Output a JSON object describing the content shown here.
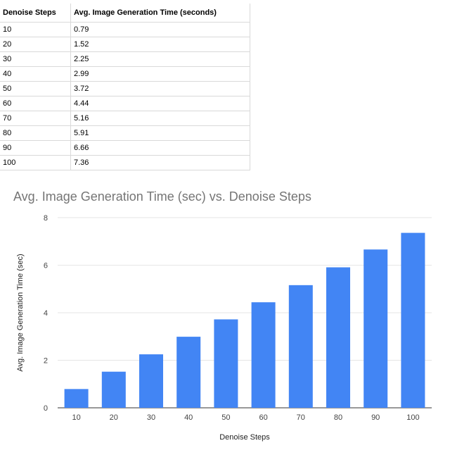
{
  "table": {
    "headers": [
      "Denoise Steps",
      "Avg. Image Generation Time (seconds)"
    ],
    "rows": [
      [
        "10",
        "0.79"
      ],
      [
        "20",
        "1.52"
      ],
      [
        "30",
        "2.25"
      ],
      [
        "40",
        "2.99"
      ],
      [
        "50",
        "3.72"
      ],
      [
        "60",
        "4.44"
      ],
      [
        "70",
        "5.16"
      ],
      [
        "80",
        "5.91"
      ],
      [
        "90",
        "6.66"
      ],
      [
        "100",
        "7.36"
      ]
    ]
  },
  "chart_data": {
    "type": "bar",
    "title": "Avg. Image Generation Time (sec) vs. Denoise Steps",
    "xlabel": "Denoise Steps",
    "ylabel": "Avg. Image Generation Time (sec)",
    "categories": [
      "10",
      "20",
      "30",
      "40",
      "50",
      "60",
      "70",
      "80",
      "90",
      "100"
    ],
    "values": [
      0.79,
      1.52,
      2.25,
      2.99,
      3.72,
      4.44,
      5.16,
      5.91,
      6.66,
      7.36
    ],
    "ylim": [
      0,
      8
    ],
    "yticks": [
      0,
      2,
      4,
      6,
      8
    ],
    "grid": true,
    "bar_color": "#4285f4",
    "gridline_color": "#e6e6e6"
  }
}
